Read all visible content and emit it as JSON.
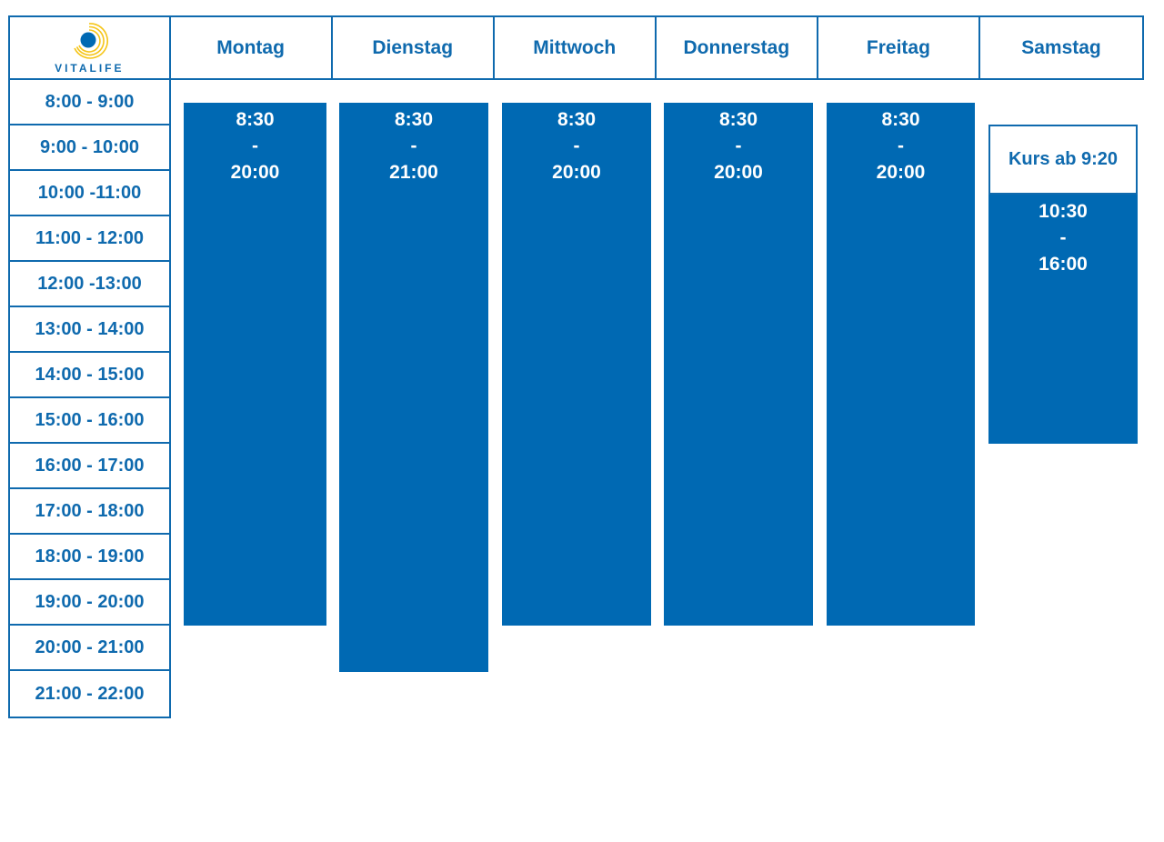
{
  "brand": {
    "name": "VITALIFE",
    "logo_icon": "vitalife-sun-logo",
    "colors": {
      "primary_blue": "#0069b3",
      "logo_yellow": "#f5c518"
    }
  },
  "days": [
    "Montag",
    "Dienstag",
    "Mittwoch",
    "Donnerstag",
    "Freitag",
    "Samstag"
  ],
  "time_slots": [
    "8:00 - 9:00",
    "9:00 - 10:00",
    "10:00 -11:00",
    "11:00 - 12:00",
    "12:00 -13:00",
    "13:00 - 14:00",
    "14:00 - 15:00",
    "15:00 - 16:00",
    "16:00 - 17:00",
    "17:00 - 18:00",
    "18:00 - 19:00",
    "19:00 - 20:00",
    "20:00 - 21:00",
    "21:00 - 22:00"
  ],
  "opening_hours": [
    {
      "day": "Montag",
      "start": "8:30",
      "separator": "-",
      "end": "20:00"
    },
    {
      "day": "Dienstag",
      "start": "8:30",
      "separator": "-",
      "end": "21:00"
    },
    {
      "day": "Mittwoch",
      "start": "8:30",
      "separator": "-",
      "end": "20:00"
    },
    {
      "day": "Donnerstag",
      "start": "8:30",
      "separator": "-",
      "end": "20:00"
    },
    {
      "day": "Freitag",
      "start": "8:30",
      "separator": "-",
      "end": "20:00"
    },
    {
      "day": "Samstag",
      "start": "10:30",
      "separator": "-",
      "end": "16:00"
    }
  ],
  "saturday_course": "Kurs ab 9:20"
}
